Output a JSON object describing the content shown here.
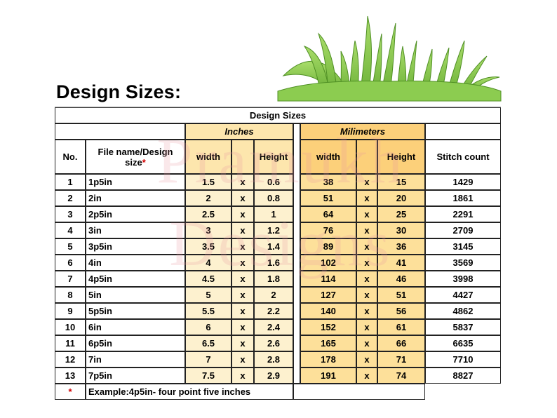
{
  "title": "Design Sizes:",
  "table": {
    "caption": "Design Sizes",
    "group_inches": "Inches",
    "group_mm": "Milimeters",
    "headers": {
      "no": "No.",
      "file": "File name/Design size",
      "star": "*",
      "width": "width",
      "height": "Height",
      "stitch": "Stitch count"
    },
    "rows": [
      {
        "no": "1",
        "name": "1p5in",
        "w_in": "1.5",
        "x": "x",
        "h_in": "0.6",
        "w_mm": "38",
        "h_mm": "15",
        "stitch": "1429"
      },
      {
        "no": "2",
        "name": "2in",
        "w_in": "2",
        "x": "x",
        "h_in": "0.8",
        "w_mm": "51",
        "h_mm": "20",
        "stitch": "1861"
      },
      {
        "no": "3",
        "name": "2p5in",
        "w_in": "2.5",
        "x": "x",
        "h_in": "1",
        "w_mm": "64",
        "h_mm": "25",
        "stitch": "2291"
      },
      {
        "no": "4",
        "name": "3in",
        "w_in": "3",
        "x": "x",
        "h_in": "1.2",
        "w_mm": "76",
        "h_mm": "30",
        "stitch": "2709"
      },
      {
        "no": "5",
        "name": "3p5in",
        "w_in": "3.5",
        "x": "x",
        "h_in": "1.4",
        "w_mm": "89",
        "h_mm": "36",
        "stitch": "3145"
      },
      {
        "no": "6",
        "name": "4in",
        "w_in": "4",
        "x": "x",
        "h_in": "1.6",
        "w_mm": "102",
        "h_mm": "41",
        "stitch": "3569"
      },
      {
        "no": "7",
        "name": "4p5in",
        "w_in": "4.5",
        "x": "x",
        "h_in": "1.8",
        "w_mm": "114",
        "h_mm": "46",
        "stitch": "3998"
      },
      {
        "no": "8",
        "name": "5in",
        "w_in": "5",
        "x": "x",
        "h_in": "2",
        "w_mm": "127",
        "h_mm": "51",
        "stitch": "4427"
      },
      {
        "no": "9",
        "name": "5p5in",
        "w_in": "5.5",
        "x": "x",
        "h_in": "2.2",
        "w_mm": "140",
        "h_mm": "56",
        "stitch": "4862"
      },
      {
        "no": "10",
        "name": "6in",
        "w_in": "6",
        "x": "x",
        "h_in": "2.4",
        "w_mm": "152",
        "h_mm": "61",
        "stitch": "5837"
      },
      {
        "no": "11",
        "name": "6p5in",
        "w_in": "6.5",
        "x": "x",
        "h_in": "2.6",
        "w_mm": "165",
        "h_mm": "66",
        "stitch": "6635"
      },
      {
        "no": "12",
        "name": "7in",
        "w_in": "7",
        "x": "x",
        "h_in": "2.8",
        "w_mm": "178",
        "h_mm": "71",
        "stitch": "7710"
      },
      {
        "no": "13",
        "name": "7p5in",
        "w_in": "7.5",
        "x": "x",
        "h_in": "2.9",
        "w_mm": "191",
        "h_mm": "74",
        "stitch": "8827"
      }
    ],
    "footnote_star": "*",
    "footnote": "Example:4p5in- four point five inches"
  },
  "watermark": [
    "Pramukh",
    "Designs"
  ],
  "colors": {
    "inches_fill": "#fdf1cf",
    "mm_fill": "#fde09a",
    "grass_light": "#9ad45a",
    "grass_dark": "#5c9a2a"
  }
}
